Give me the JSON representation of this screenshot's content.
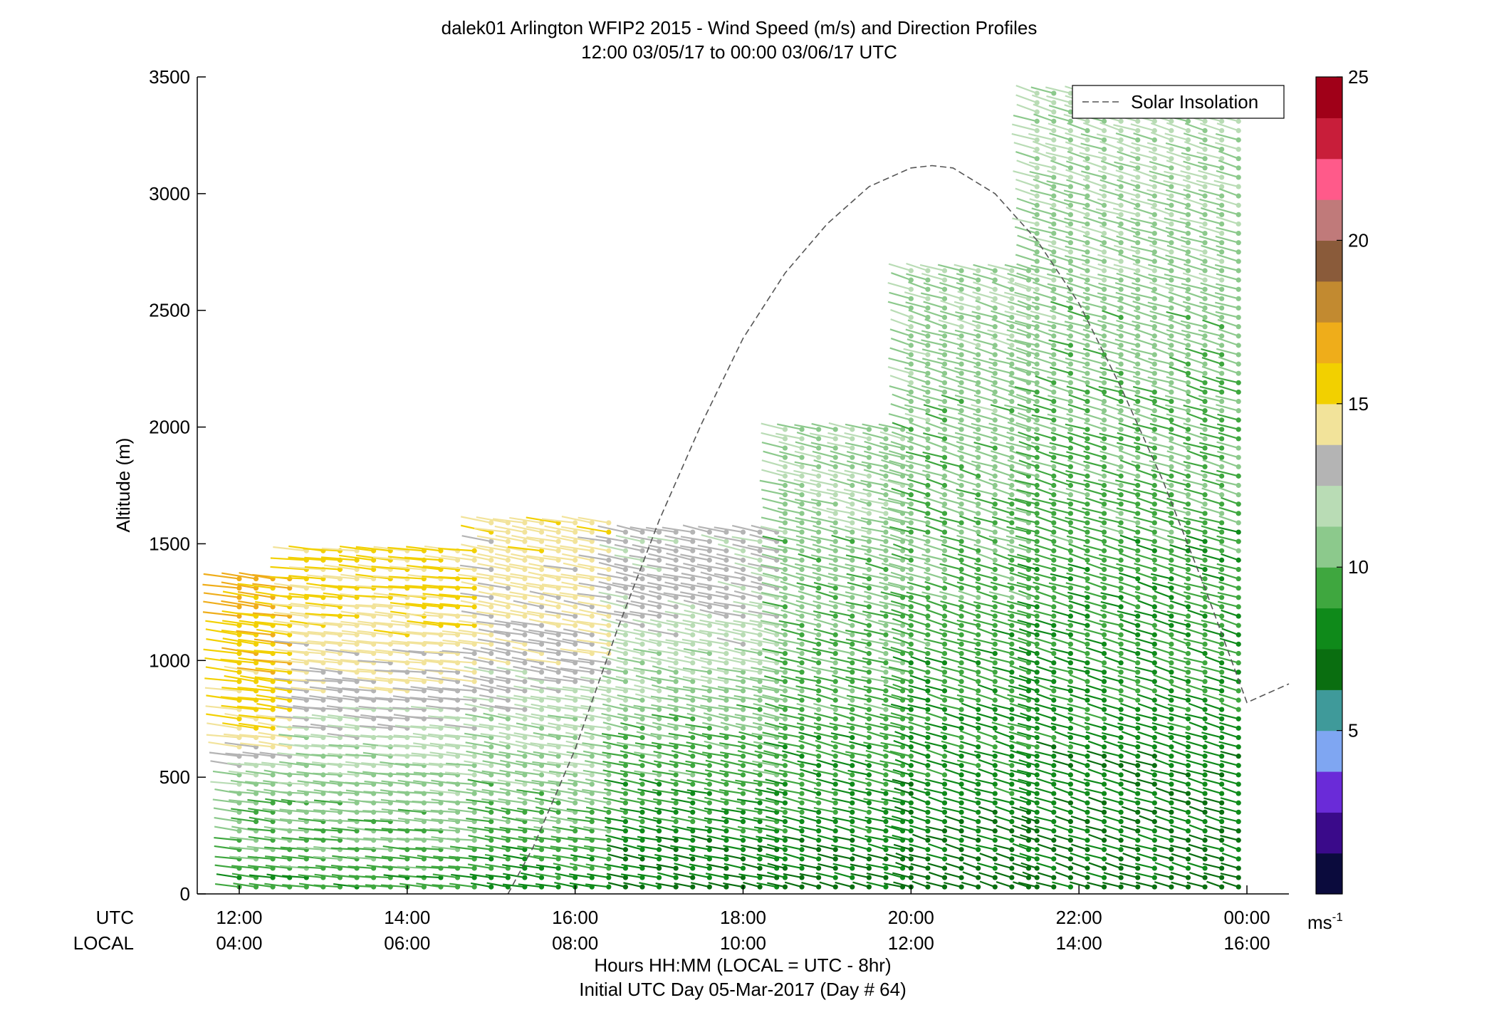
{
  "chart_data": {
    "type": "scatter",
    "title": "dalek01 Arlington WFIP2 2015 - Wind Speed (m/s) and Direction Profiles",
    "subtitle": "12:00 03/05/17 to 00:00 03/06/17  UTC",
    "ylabel": "Altitude (m)",
    "xlabel": "Hours HH:MM  (LOCAL = UTC - 8hr)",
    "xlabel2": "Initial UTC Day 05-Mar-2017 (Day # 64)",
    "utc_row_label": "UTC",
    "local_row_label": "LOCAL",
    "xlim": [
      11.5,
      24.5
    ],
    "ylim": [
      0,
      3500
    ],
    "x_ticks": [
      12,
      14,
      16,
      18,
      20,
      22,
      24
    ],
    "x_tick_labels_utc": [
      "12:00",
      "14:00",
      "16:00",
      "18:00",
      "20:00",
      "22:00",
      "00:00"
    ],
    "x_tick_labels_local": [
      "04:00",
      "06:00",
      "08:00",
      "10:00",
      "12:00",
      "14:00",
      "16:00"
    ],
    "y_ticks": [
      0,
      500,
      1000,
      1500,
      2000,
      2500,
      3000,
      3500
    ],
    "y_tick_labels": [
      "0",
      "500",
      "1000",
      "1500",
      "2000",
      "2500",
      "3000",
      "3500"
    ],
    "legend": {
      "label": "Solar Insolation",
      "position": "top-right"
    },
    "solar_insolation_curve": {
      "x": [
        15.2,
        15.5,
        16.0,
        16.5,
        17.0,
        17.5,
        18.0,
        18.5,
        19.0,
        19.5,
        20.0,
        20.25,
        20.5,
        21.0,
        21.5,
        22.0,
        22.5,
        23.0,
        23.5,
        24.0,
        24.5
      ],
      "y": [
        0,
        200,
        620,
        1130,
        1600,
        2010,
        2380,
        2660,
        2870,
        3030,
        3110,
        3120,
        3110,
        3000,
        2800,
        2530,
        2170,
        1770,
        1310,
        820,
        900
      ]
    },
    "colorbar": {
      "unit_label": "ms",
      "unit_exponent": "-1",
      "range": [
        0,
        25
      ],
      "ticks": [
        5,
        10,
        15,
        20,
        25
      ],
      "tick_labels": [
        "5",
        "10",
        "15",
        "20",
        "25"
      ],
      "colors": [
        "#0b0b3d",
        "#3a0a8a",
        "#6a2bd8",
        "#7fa6f2",
        "#3f9a9a",
        "#0a6e10",
        "#0f8a1a",
        "#3fa73f",
        "#8cc98c",
        "#b9dcb5",
        "#b4b4b4",
        "#f2e39a",
        "#f2d000",
        "#efad1a",
        "#c28a30",
        "#8a5b3a",
        "#c07a7a",
        "#ff5a8a",
        "#c81e3a",
        "#a00018"
      ]
    },
    "wind_profiles": {
      "profile_interval_hours": 0.2,
      "heights_m": "every 40 m from surface to the highest valid return",
      "regions": [
        {
          "x_range": [
            12.0,
            12.8
          ],
          "max_height": 1350,
          "speed_by_height": [
            [
              0,
              9
            ],
            [
              500,
              11
            ],
            [
              700,
              15
            ],
            [
              1500,
              17
            ]
          ],
          "direction_deg": 250
        },
        {
          "x_range": [
            12.8,
            15.0
          ],
          "max_height": 1480,
          "speed_by_height": [
            [
              0,
              9
            ],
            [
              500,
              11
            ],
            [
              700,
              12
            ],
            [
              900,
              14
            ],
            [
              1500,
              15.5
            ]
          ],
          "direction_deg": 255
        },
        {
          "x_range": [
            15.0,
            16.6
          ],
          "max_height": 1620,
          "speed_by_height": [
            [
              0,
              8
            ],
            [
              300,
              10
            ],
            [
              800,
              12
            ],
            [
              1100,
              14
            ],
            [
              1600,
              14.5
            ]
          ],
          "direction_deg": 245
        },
        {
          "x_range": [
            16.6,
            18.5
          ],
          "max_height": 1560,
          "speed_by_height": [
            [
              0,
              7
            ],
            [
              400,
              9
            ],
            [
              900,
              11
            ],
            [
              1300,
              13
            ],
            [
              1550,
              13
            ]
          ],
          "direction_deg": 240
        },
        {
          "x_range": [
            18.5,
            20.0
          ],
          "max_height": 2000,
          "speed_by_height": [
            [
              0,
              7
            ],
            [
              500,
              9
            ],
            [
              1000,
              10
            ],
            [
              1800,
              11
            ]
          ],
          "direction_deg": 235
        },
        {
          "x_range": [
            20.0,
            21.5
          ],
          "max_height": 2700,
          "speed_by_height": [
            [
              0,
              7
            ],
            [
              600,
              8.5
            ],
            [
              1500,
              10
            ],
            [
              2500,
              11
            ]
          ],
          "direction_deg": 230
        },
        {
          "x_range": [
            21.5,
            24.0
          ],
          "max_height": 3450,
          "speed_by_height": [
            [
              0,
              7
            ],
            [
              800,
              8.5
            ],
            [
              2000,
              10
            ],
            [
              3200,
              11.5
            ]
          ],
          "direction_deg": 230
        }
      ]
    }
  }
}
